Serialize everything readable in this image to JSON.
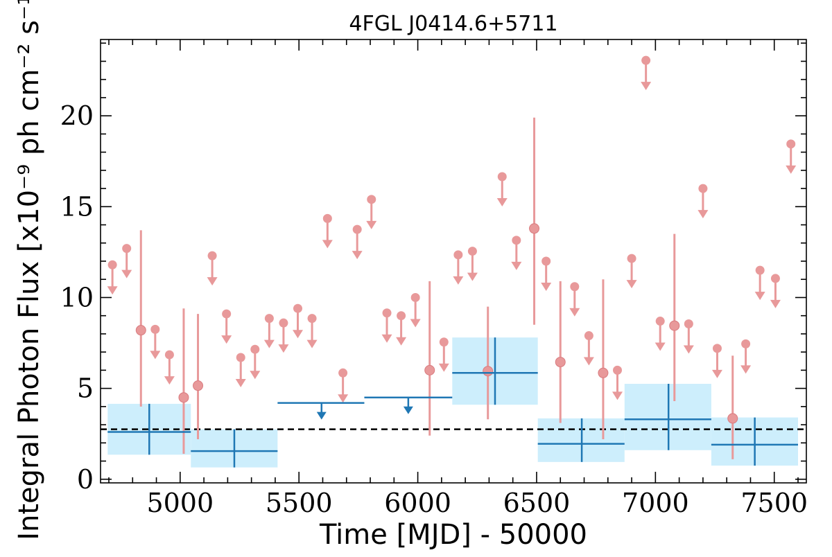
{
  "chart_data": {
    "type": "scatter",
    "title": "4FGL J0414.6+5711",
    "xlabel": "Time [MJD] - 50000",
    "ylabel": "Integral Photon Flux [x10⁻⁹ ph cm⁻² s⁻¹]",
    "xlim": [
      4665,
      7635
    ],
    "ylim": [
      -0.2,
      24.2
    ],
    "xticks": [
      5000,
      5500,
      6000,
      6500,
      7000,
      7500
    ],
    "xtick_labels": [
      "5000",
      "5500",
      "6000",
      "6500",
      "7000",
      "7500"
    ],
    "yticks": [
      0,
      5,
      10,
      15,
      20
    ],
    "ytick_labels": [
      "0",
      "5",
      "10",
      "15",
      "20"
    ],
    "grid": false,
    "reference_line": {
      "y": 2.75,
      "style": "dashed",
      "color": "#000000"
    },
    "colors": {
      "short_bins": "#e8999a",
      "long_bins": "#1f77b4",
      "long_band": "#cdeefc"
    },
    "short_bin_detections": [
      {
        "x": 4835,
        "y": 8.2,
        "ylo": 4.0,
        "yhi": 13.7
      },
      {
        "x": 5015,
        "y": 4.5,
        "ylo": 1.4,
        "yhi": 9.4
      },
      {
        "x": 5075,
        "y": 5.15,
        "ylo": 2.2,
        "yhi": 9.1
      },
      {
        "x": 6050,
        "y": 6.0,
        "ylo": 2.4,
        "yhi": 10.9
      },
      {
        "x": 6295,
        "y": 5.95,
        "ylo": 3.3,
        "yhi": 9.5
      },
      {
        "x": 6490,
        "y": 13.8,
        "ylo": 8.5,
        "yhi": 19.9
      },
      {
        "x": 6600,
        "y": 6.45,
        "ylo": 3.1,
        "yhi": 10.9
      },
      {
        "x": 6780,
        "y": 5.85,
        "ylo": 2.2,
        "yhi": 11.0
      },
      {
        "x": 7080,
        "y": 8.45,
        "ylo": 4.3,
        "yhi": 13.5
      },
      {
        "x": 7325,
        "y": 3.35,
        "ylo": 1.1,
        "yhi": 6.8
      }
    ],
    "short_bin_upper_limits": [
      {
        "x": 4715,
        "y": 11.8
      },
      {
        "x": 4775,
        "y": 12.7
      },
      {
        "x": 4895,
        "y": 8.25
      },
      {
        "x": 4955,
        "y": 6.85
      },
      {
        "x": 5135,
        "y": 12.3
      },
      {
        "x": 5195,
        "y": 9.1
      },
      {
        "x": 5255,
        "y": 6.7
      },
      {
        "x": 5315,
        "y": 7.15
      },
      {
        "x": 5375,
        "y": 8.85
      },
      {
        "x": 5435,
        "y": 8.6
      },
      {
        "x": 5495,
        "y": 9.4
      },
      {
        "x": 5555,
        "y": 8.85
      },
      {
        "x": 5620,
        "y": 14.35
      },
      {
        "x": 5685,
        "y": 5.85
      },
      {
        "x": 5745,
        "y": 13.75
      },
      {
        "x": 5805,
        "y": 15.4
      },
      {
        "x": 5870,
        "y": 9.15
      },
      {
        "x": 5930,
        "y": 9.0
      },
      {
        "x": 5990,
        "y": 10.0
      },
      {
        "x": 6110,
        "y": 7.55
      },
      {
        "x": 6170,
        "y": 12.35
      },
      {
        "x": 6230,
        "y": 12.55
      },
      {
        "x": 6355,
        "y": 16.65
      },
      {
        "x": 6415,
        "y": 13.15
      },
      {
        "x": 6540,
        "y": 12.0
      },
      {
        "x": 6660,
        "y": 10.6
      },
      {
        "x": 6720,
        "y": 7.9
      },
      {
        "x": 6840,
        "y": 6.0
      },
      {
        "x": 6900,
        "y": 12.15
      },
      {
        "x": 6960,
        "y": 23.05
      },
      {
        "x": 7020,
        "y": 8.7
      },
      {
        "x": 7140,
        "y": 8.55
      },
      {
        "x": 7200,
        "y": 16.0
      },
      {
        "x": 7260,
        "y": 7.2
      },
      {
        "x": 7380,
        "y": 7.45
      },
      {
        "x": 7440,
        "y": 11.5
      },
      {
        "x": 7505,
        "y": 11.05
      },
      {
        "x": 7570,
        "y": 18.45
      }
    ],
    "long_bin_detections": [
      {
        "x0": 4695,
        "x1": 5045,
        "xc": 4870,
        "y": 2.6,
        "ylo": 1.35,
        "yhi": 4.15
      },
      {
        "x0": 5045,
        "x1": 5410,
        "xc": 5228,
        "y": 1.55,
        "ylo": 0.65,
        "yhi": 2.75
      },
      {
        "x0": 6145,
        "x1": 6505,
        "xc": 6325,
        "y": 5.85,
        "ylo": 4.1,
        "yhi": 7.8
      },
      {
        "x0": 6505,
        "x1": 6870,
        "xc": 6690,
        "y": 1.95,
        "ylo": 0.95,
        "yhi": 3.35
      },
      {
        "x0": 6870,
        "x1": 7235,
        "xc": 7055,
        "y": 3.3,
        "ylo": 1.6,
        "yhi": 5.25
      },
      {
        "x0": 7235,
        "x1": 7600,
        "xc": 7418,
        "y": 1.9,
        "ylo": 0.75,
        "yhi": 3.4
      }
    ],
    "long_bin_upper_limits": [
      {
        "x0": 5410,
        "x1": 5775,
        "xc": 5595,
        "y": 4.2
      },
      {
        "x0": 5775,
        "x1": 6145,
        "xc": 5960,
        "y": 4.5
      }
    ]
  }
}
